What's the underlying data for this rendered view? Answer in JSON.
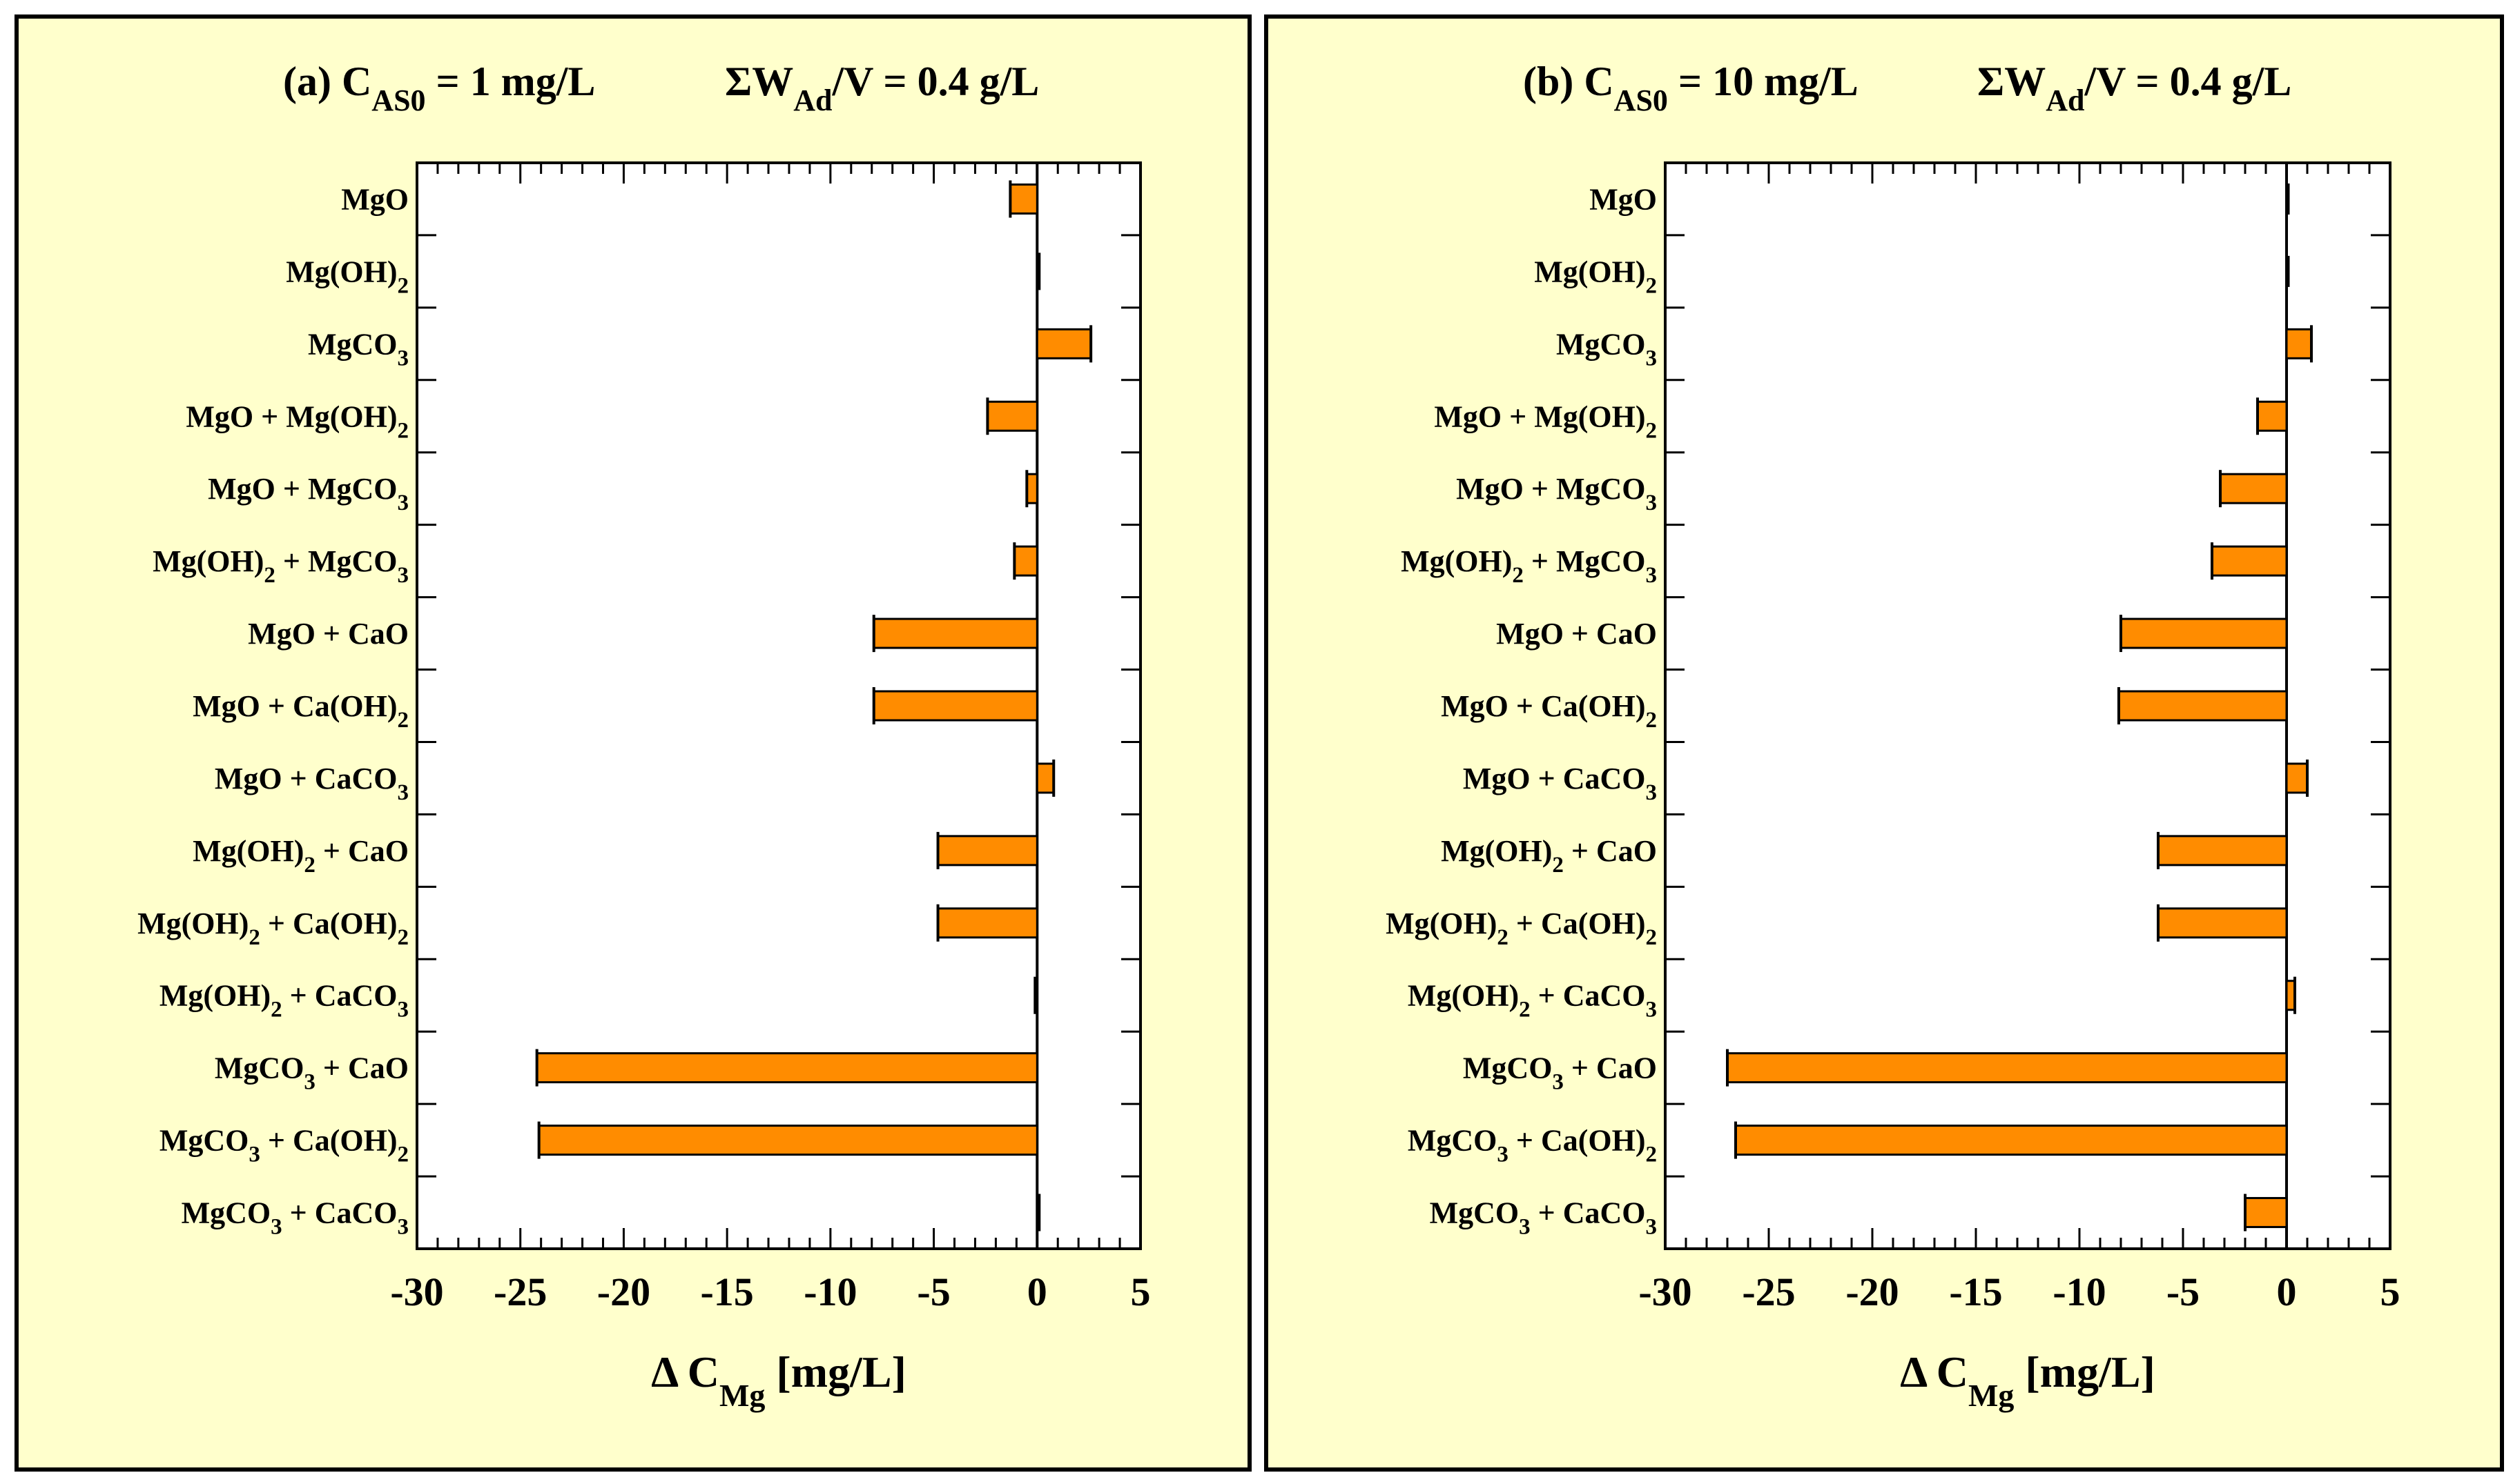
{
  "colors": {
    "panel_background": "#FFFFCC",
    "plot_background": "#FFFFFF",
    "bar_fill": "#FF8C00",
    "bar_stroke": "#000000",
    "frame": "#000000"
  },
  "chart_data": [
    {
      "type": "bar",
      "orientation": "horizontal",
      "panel": "a",
      "title": {
        "prefix": "(a) C",
        "prefix_sub": "AS0",
        "mid": " = 1 mg/L",
        "sigma": "Σ",
        "w": "W",
        "w_sub": "Ad",
        "suffix": "/V =  0.4 g/L"
      },
      "xlabel": {
        "delta": "Δ",
        "c": "C",
        "c_sub": "Mg",
        "unit": "[mg/L]"
      },
      "xlim": [
        -30,
        5
      ],
      "xticks": [
        -30,
        -25,
        -20,
        -15,
        -10,
        -5,
        0,
        5
      ],
      "grid": false,
      "categories": [
        {
          "main": "MgO",
          "sub": "",
          "rest": ""
        },
        {
          "main": "Mg(OH)",
          "sub": "2",
          "rest": ""
        },
        {
          "main": "MgCO",
          "sub": "3",
          "rest": ""
        },
        {
          "main": "MgO + Mg(OH)",
          "sub": "2",
          "rest": ""
        },
        {
          "main": "MgO + MgCO",
          "sub": "3",
          "rest": ""
        },
        {
          "main": "Mg(OH)",
          "sub": "2",
          "rest": " + MgCO",
          "sub2": "3"
        },
        {
          "main": "MgO + CaO",
          "sub": "",
          "rest": ""
        },
        {
          "main": "MgO + Ca(OH)",
          "sub": "2",
          "rest": ""
        },
        {
          "main": "MgO + CaCO",
          "sub": "3",
          "rest": ""
        },
        {
          "main": "Mg(OH)",
          "sub": "2",
          "rest": " + CaO"
        },
        {
          "main": "Mg(OH)",
          "sub": "2",
          "rest": " + Ca(OH)",
          "sub2": "2"
        },
        {
          "main": "Mg(OH)",
          "sub": "2",
          "rest": " + CaCO",
          "sub2": "3"
        },
        {
          "main": "MgCO",
          "sub": "3",
          "rest": " + CaO"
        },
        {
          "main": "MgCO",
          "sub": "3",
          "rest": " + Ca(OH)",
          "sub2": "2"
        },
        {
          "main": "MgCO",
          "sub": "3",
          "rest": " + CaCO",
          "sub2": "3"
        }
      ],
      "values": [
        -1.3,
        0.1,
        2.6,
        -2.4,
        -0.5,
        -1.1,
        -7.9,
        -7.9,
        0.8,
        -4.8,
        -4.8,
        -0.1,
        -24.2,
        -24.1,
        0.1
      ]
    },
    {
      "type": "bar",
      "orientation": "horizontal",
      "panel": "b",
      "title": {
        "prefix": "(b) C",
        "prefix_sub": "AS0",
        "mid": " = 10 mg/L",
        "sigma": "Σ",
        "w": "W",
        "w_sub": "Ad",
        "suffix": "/V =  0.4 g/L"
      },
      "xlabel": {
        "delta": "Δ",
        "c": "C",
        "c_sub": "Mg",
        "unit": "[mg/L]"
      },
      "xlim": [
        -30,
        5
      ],
      "xticks": [
        -30,
        -25,
        -20,
        -15,
        -10,
        -5,
        0,
        5
      ],
      "grid": false,
      "categories": [
        {
          "main": "MgO",
          "sub": "",
          "rest": ""
        },
        {
          "main": "Mg(OH)",
          "sub": "2",
          "rest": ""
        },
        {
          "main": "MgCO",
          "sub": "3",
          "rest": ""
        },
        {
          "main": "MgO + Mg(OH)",
          "sub": "2",
          "rest": ""
        },
        {
          "main": "MgO + MgCO",
          "sub": "3",
          "rest": ""
        },
        {
          "main": "Mg(OH)",
          "sub": "2",
          "rest": " + MgCO",
          "sub2": "3"
        },
        {
          "main": "MgO + CaO",
          "sub": "",
          "rest": ""
        },
        {
          "main": "MgO + Ca(OH)",
          "sub": "2",
          "rest": ""
        },
        {
          "main": "MgO + CaCO",
          "sub": "3",
          "rest": ""
        },
        {
          "main": "Mg(OH)",
          "sub": "2",
          "rest": " + CaO"
        },
        {
          "main": "Mg(OH)",
          "sub": "2",
          "rest": " + Ca(OH)",
          "sub2": "2"
        },
        {
          "main": "Mg(OH)",
          "sub": "2",
          "rest": " + CaCO",
          "sub2": "3"
        },
        {
          "main": "MgCO",
          "sub": "3",
          "rest": " + CaO"
        },
        {
          "main": "MgCO",
          "sub": "3",
          "rest": " + Ca(OH)",
          "sub2": "2"
        },
        {
          "main": "MgCO",
          "sub": "3",
          "rest": " + CaCO",
          "sub2": "3"
        }
      ],
      "values": [
        0.0,
        0.0,
        1.2,
        -1.4,
        -3.2,
        -3.6,
        -8.0,
        -8.1,
        1.0,
        -6.2,
        -6.2,
        0.4,
        -27.0,
        -26.6,
        -2.0
      ]
    }
  ]
}
